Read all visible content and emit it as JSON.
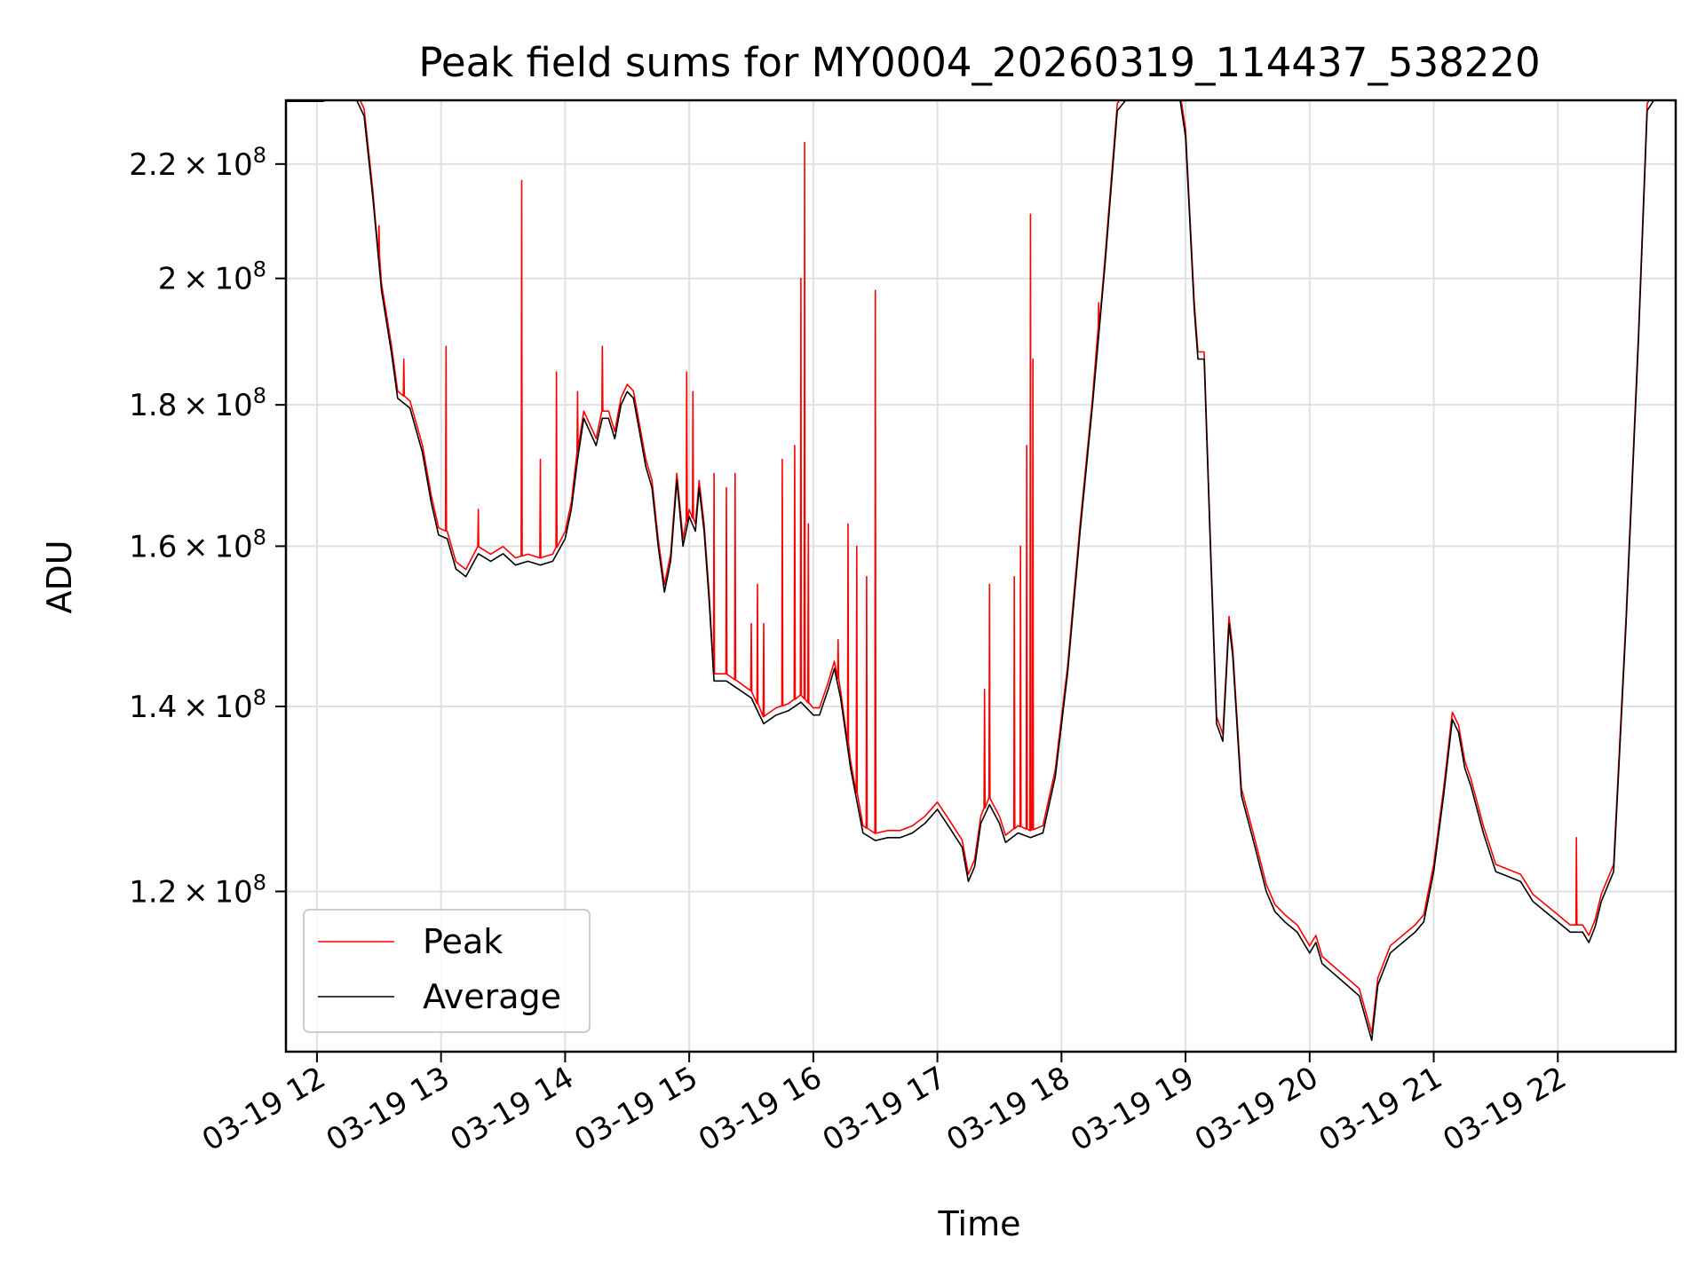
{
  "chart_data": {
    "type": "line",
    "title": "Peak field sums for MY0004_20260319_114437_538220",
    "xlabel": "Time",
    "ylabel": "ADU",
    "yscale": "log",
    "ylim": [
      105000000,
      232000000
    ],
    "xlim": [
      11.75,
      22.95
    ],
    "grid": true,
    "legend_position": "bottom-left",
    "x_ticks": [
      {
        "value": 12,
        "label": "03-19 12"
      },
      {
        "value": 13,
        "label": "03-19 13"
      },
      {
        "value": 14,
        "label": "03-19 14"
      },
      {
        "value": 15,
        "label": "03-19 15"
      },
      {
        "value": 16,
        "label": "03-19 16"
      },
      {
        "value": 17,
        "label": "03-19 17"
      },
      {
        "value": 18,
        "label": "03-19 18"
      },
      {
        "value": 19,
        "label": "03-19 19"
      },
      {
        "value": 20,
        "label": "03-19 20"
      },
      {
        "value": 21,
        "label": "03-19 21"
      },
      {
        "value": 22,
        "label": "03-19 22"
      }
    ],
    "y_ticks": [
      {
        "value": 120000000,
        "mant": "1.2",
        "exp": "8"
      },
      {
        "value": 140000000,
        "mant": "1.4",
        "exp": "8"
      },
      {
        "value": 160000000,
        "mant": "1.6",
        "exp": "8"
      },
      {
        "value": 180000000,
        "mant": "1.8",
        "exp": "8"
      },
      {
        "value": 200000000,
        "mant": "2",
        "exp": "8"
      },
      {
        "value": 220000000,
        "mant": "2.2",
        "exp": "8"
      }
    ],
    "series": [
      {
        "name": "Peak",
        "color": "#ff0000"
      },
      {
        "name": "Average",
        "color": "#000000"
      }
    ],
    "average_points": [
      [
        11.75,
        231800000.0
      ],
      [
        12.05,
        231800000.0
      ],
      [
        12.15,
        233000000.0
      ],
      [
        12.3,
        233000000.0
      ],
      [
        12.38,
        229000000.0
      ],
      [
        12.45,
        214000000.0
      ],
      [
        12.52,
        198000000.0
      ],
      [
        12.6,
        188000000.0
      ],
      [
        12.65,
        181000000.0
      ],
      [
        12.75,
        179500000.0
      ],
      [
        12.85,
        173000000.0
      ],
      [
        12.92,
        166000000.0
      ],
      [
        12.98,
        161500000.0
      ],
      [
        13.05,
        161000000.0
      ],
      [
        13.12,
        157000000.0
      ],
      [
        13.2,
        156000000.0
      ],
      [
        13.3,
        159000000.0
      ],
      [
        13.4,
        158000000.0
      ],
      [
        13.5,
        159000000.0
      ],
      [
        13.6,
        157500000.0
      ],
      [
        13.7,
        158000000.0
      ],
      [
        13.8,
        157500000.0
      ],
      [
        13.9,
        158000000.0
      ],
      [
        14.0,
        161000000.0
      ],
      [
        14.05,
        165000000.0
      ],
      [
        14.1,
        172000000.0
      ],
      [
        14.15,
        178000000.0
      ],
      [
        14.2,
        176000000.0
      ],
      [
        14.25,
        174000000.0
      ],
      [
        14.3,
        178000000.0
      ],
      [
        14.35,
        178000000.0
      ],
      [
        14.4,
        175000000.0
      ],
      [
        14.45,
        180000000.0
      ],
      [
        14.5,
        182000000.0
      ],
      [
        14.55,
        181000000.0
      ],
      [
        14.6,
        176000000.0
      ],
      [
        14.65,
        171000000.0
      ],
      [
        14.7,
        168000000.0
      ],
      [
        14.75,
        160000000.0
      ],
      [
        14.8,
        154000000.0
      ],
      [
        14.85,
        158000000.0
      ],
      [
        14.9,
        169000000.0
      ],
      [
        14.95,
        160000000.0
      ],
      [
        15.0,
        164000000.0
      ],
      [
        15.05,
        162000000.0
      ],
      [
        15.08,
        168000000.0
      ],
      [
        15.12,
        162000000.0
      ],
      [
        15.16,
        153000000.0
      ],
      [
        15.2,
        143000000.0
      ],
      [
        15.3,
        143000000.0
      ],
      [
        15.4,
        142000000.0
      ],
      [
        15.5,
        141000000.0
      ],
      [
        15.6,
        138000000.0
      ],
      [
        15.7,
        139000000.0
      ],
      [
        15.8,
        139500000.0
      ],
      [
        15.9,
        140500000.0
      ],
      [
        16.0,
        139000000.0
      ],
      [
        16.05,
        139000000.0
      ],
      [
        16.12,
        142000000.0
      ],
      [
        16.17,
        144500000.0
      ],
      [
        16.22,
        141000000.0
      ],
      [
        16.3,
        133000000.0
      ],
      [
        16.4,
        126000000.0
      ],
      [
        16.5,
        125200000.0
      ],
      [
        16.6,
        125500000.0
      ],
      [
        16.7,
        125500000.0
      ],
      [
        16.8,
        126000000.0
      ],
      [
        16.9,
        127000000.0
      ],
      [
        17.0,
        128500000.0
      ],
      [
        17.1,
        126500000.0
      ],
      [
        17.2,
        124500000.0
      ],
      [
        17.25,
        121000000.0
      ],
      [
        17.3,
        122500000.0
      ],
      [
        17.35,
        127000000.0
      ],
      [
        17.42,
        129000000.0
      ],
      [
        17.5,
        127000000.0
      ],
      [
        17.55,
        125000000.0
      ],
      [
        17.65,
        126000000.0
      ],
      [
        17.75,
        125500000.0
      ],
      [
        17.85,
        126000000.0
      ],
      [
        17.95,
        132000000.0
      ],
      [
        18.05,
        144000000.0
      ],
      [
        18.15,
        162000000.0
      ],
      [
        18.25,
        180000000.0
      ],
      [
        18.35,
        202000000.0
      ],
      [
        18.45,
        230000000.0
      ],
      [
        18.55,
        233000000.0
      ],
      [
        18.95,
        233000000.0
      ],
      [
        19.0,
        225000000.0
      ],
      [
        19.07,
        195000000.0
      ],
      [
        19.1,
        187000000.0
      ],
      [
        19.15,
        187000000.0
      ],
      [
        19.2,
        160000000.0
      ],
      [
        19.25,
        138000000.0
      ],
      [
        19.3,
        136000000.0
      ],
      [
        19.35,
        150000000.0
      ],
      [
        19.38,
        146000000.0
      ],
      [
        19.45,
        130000000.0
      ],
      [
        19.55,
        125000000.0
      ],
      [
        19.65,
        120000000.0
      ],
      [
        19.72,
        118000000.0
      ],
      [
        19.8,
        117000000.0
      ],
      [
        19.9,
        116000000.0
      ],
      [
        20.0,
        114000000.0
      ],
      [
        20.05,
        115000000.0
      ],
      [
        20.1,
        113000000.0
      ],
      [
        20.2,
        112000000.0
      ],
      [
        20.3,
        111000000.0
      ],
      [
        20.4,
        110000000.0
      ],
      [
        20.5,
        106000000.0
      ],
      [
        20.55,
        111000000.0
      ],
      [
        20.65,
        114000000.0
      ],
      [
        20.75,
        115000000.0
      ],
      [
        20.85,
        116000000.0
      ],
      [
        20.92,
        117000000.0
      ],
      [
        21.0,
        122000000.0
      ],
      [
        21.08,
        130000000.0
      ],
      [
        21.15,
        138500000.0
      ],
      [
        21.2,
        137000000.0
      ],
      [
        21.25,
        133000000.0
      ],
      [
        21.3,
        131000000.0
      ],
      [
        21.4,
        126000000.0
      ],
      [
        21.5,
        122000000.0
      ],
      [
        21.6,
        121500000.0
      ],
      [
        21.7,
        121000000.0
      ],
      [
        21.8,
        119000000.0
      ],
      [
        21.9,
        118000000.0
      ],
      [
        22.0,
        117000000.0
      ],
      [
        22.1,
        116000000.0
      ],
      [
        22.2,
        116000000.0
      ],
      [
        22.25,
        115000000.0
      ],
      [
        22.3,
        116500000.0
      ],
      [
        22.35,
        119000000.0
      ],
      [
        22.45,
        122000000.0
      ],
      [
        22.55,
        150000000.0
      ],
      [
        22.65,
        190000000.0
      ],
      [
        22.72,
        230000000.0
      ],
      [
        22.8,
        233000000.0
      ],
      [
        22.95,
        233000000.0
      ]
    ],
    "peak_spikes": [
      [
        12.5,
        209000000.0
      ],
      [
        12.7,
        187000000.0
      ],
      [
        13.04,
        189000000.0
      ],
      [
        13.3,
        165000000.0
      ],
      [
        13.65,
        217000000.0
      ],
      [
        13.8,
        172000000.0
      ],
      [
        13.93,
        185000000.0
      ],
      [
        14.1,
        182000000.0
      ],
      [
        14.3,
        189000000.0
      ],
      [
        14.98,
        185000000.0
      ],
      [
        15.03,
        182000000.0
      ],
      [
        15.2,
        170000000.0
      ],
      [
        15.3,
        168000000.0
      ],
      [
        15.37,
        170000000.0
      ],
      [
        15.5,
        150000000.0
      ],
      [
        15.55,
        155000000.0
      ],
      [
        15.6,
        150000000.0
      ],
      [
        15.75,
        172000000.0
      ],
      [
        15.85,
        174000000.0
      ],
      [
        15.9,
        200000000.0
      ],
      [
        15.93,
        224000000.0
      ],
      [
        15.96,
        163000000.0
      ],
      [
        16.2,
        148000000.0
      ],
      [
        16.28,
        163000000.0
      ],
      [
        16.35,
        160000000.0
      ],
      [
        16.43,
        156000000.0
      ],
      [
        16.5,
        198000000.0
      ],
      [
        17.38,
        142000000.0
      ],
      [
        17.42,
        155000000.0
      ],
      [
        17.62,
        156000000.0
      ],
      [
        17.67,
        160000000.0
      ],
      [
        17.72,
        174000000.0
      ],
      [
        17.75,
        211000000.0
      ],
      [
        17.77,
        187000000.0
      ],
      [
        18.3,
        196000000.0
      ],
      [
        22.15,
        125500000.0
      ]
    ]
  }
}
